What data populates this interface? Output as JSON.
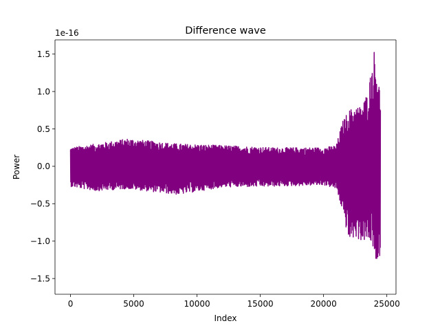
{
  "chart_data": {
    "type": "line",
    "title": "Difference wave",
    "xlabel": "Index",
    "ylabel": "Power",
    "y_offset_label": "1e-16",
    "xlim": [
      -1225,
      25725
    ],
    "ylim": [
      -1.71,
      1.69
    ],
    "x_ticks": [
      0,
      5000,
      10000,
      15000,
      20000,
      25000
    ],
    "x_tick_labels": [
      "0",
      "5000",
      "10000",
      "15000",
      "20000",
      "25000"
    ],
    "y_ticks": [
      -1.5,
      -1.0,
      -0.5,
      0.0,
      0.5,
      1.0,
      1.5
    ],
    "y_tick_labels": [
      "−1.5",
      "−1.0",
      "−0.5",
      "0.0",
      "0.5",
      "1.0",
      "1.5"
    ],
    "grid": false,
    "series": [
      {
        "color": "#800080",
        "x_range": [
          0,
          24500
        ],
        "envelope": [
          {
            "x": 0,
            "min": -0.27,
            "max": 0.25
          },
          {
            "x": 2000,
            "min": -0.33,
            "max": 0.3
          },
          {
            "x": 4500,
            "min": -0.3,
            "max": 0.37
          },
          {
            "x": 8500,
            "min": -0.38,
            "max": 0.3
          },
          {
            "x": 12000,
            "min": -0.28,
            "max": 0.28
          },
          {
            "x": 16000,
            "min": -0.27,
            "max": 0.25
          },
          {
            "x": 20000,
            "min": -0.25,
            "max": 0.25
          },
          {
            "x": 21000,
            "min": -0.3,
            "max": 0.28
          },
          {
            "x": 21500,
            "min": -0.6,
            "max": 0.6
          },
          {
            "x": 22000,
            "min": -1.0,
            "max": 0.75
          },
          {
            "x": 22500,
            "min": -0.95,
            "max": 0.8
          },
          {
            "x": 23000,
            "min": -1.0,
            "max": 0.8
          },
          {
            "x": 23500,
            "min": -1.0,
            "max": 1.0
          },
          {
            "x": 24000,
            "min": -1.1,
            "max": 1.55
          },
          {
            "x": 24200,
            "min": -1.57,
            "max": 1.3
          },
          {
            "x": 24500,
            "min": -1.1,
            "max": 0.97
          }
        ]
      }
    ]
  }
}
